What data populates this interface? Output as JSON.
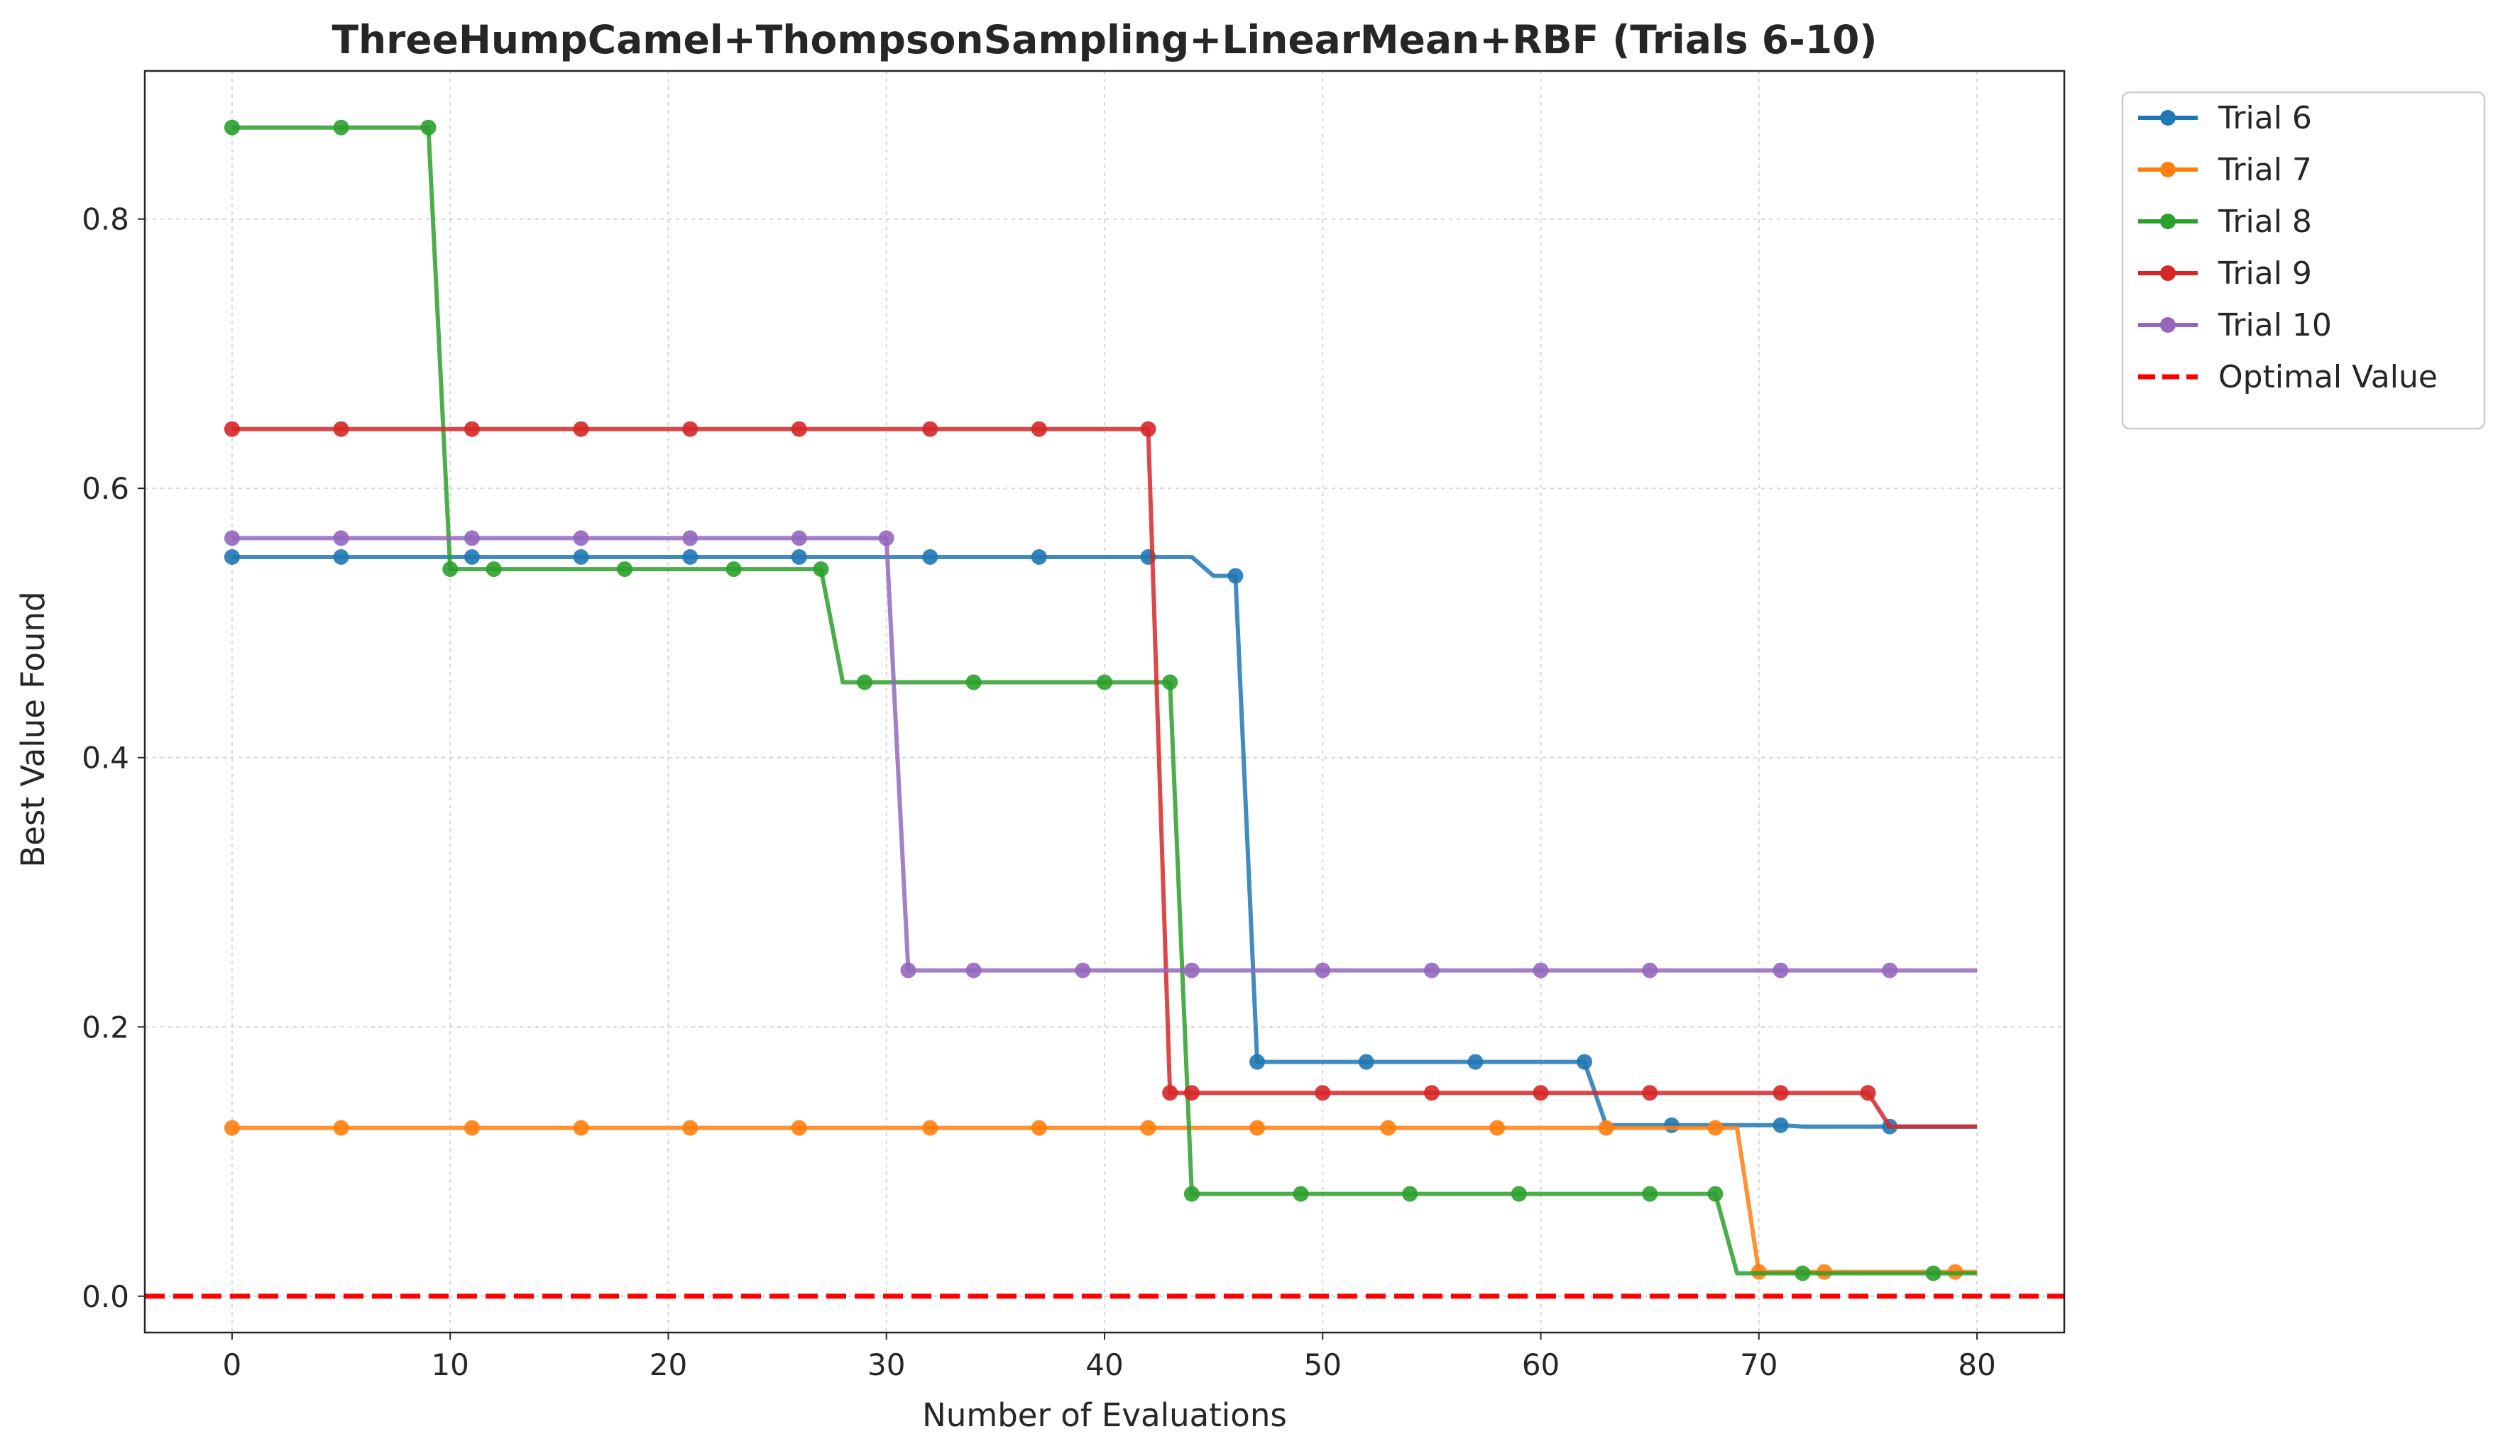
{
  "chart_data": {
    "type": "line",
    "title": "ThreeHumpCamel+ThompsonSampling+LinearMean+RBF (Trials 6-10)",
    "xlabel": "Number of Evaluations",
    "ylabel": "Best Value Found",
    "xlim": [
      -4,
      84
    ],
    "ylim": [
      -0.027,
      0.91
    ],
    "xticks": [
      0,
      10,
      20,
      30,
      40,
      50,
      60,
      70,
      80
    ],
    "yticks": [
      0.0,
      0.2,
      0.4,
      0.6,
      0.8
    ],
    "xtick_labels": [
      "0",
      "10",
      "20",
      "30",
      "40",
      "50",
      "60",
      "70",
      "80"
    ],
    "ytick_labels": [
      "0.0",
      "0.2",
      "0.4",
      "0.6",
      "0.8"
    ],
    "grid": true,
    "legend_position": "outside-top-right",
    "series": [
      {
        "name": "Trial 6",
        "color": "#1f77b4",
        "breakpoints": [
          [
            0,
            0.549
          ],
          [
            44,
            0.549
          ],
          [
            45,
            0.535
          ],
          [
            46,
            0.535
          ],
          [
            47,
            0.174
          ],
          [
            62,
            0.174
          ],
          [
            63,
            0.127
          ],
          [
            71,
            0.127
          ],
          [
            72,
            0.126
          ],
          [
            80,
            0.126
          ]
        ],
        "markers_x": [
          0,
          5,
          11,
          16,
          21,
          26,
          32,
          37,
          42,
          46,
          47,
          52,
          57,
          62,
          66,
          71,
          76
        ]
      },
      {
        "name": "Trial 7",
        "color": "#ff7f0e",
        "breakpoints": [
          [
            0,
            0.125
          ],
          [
            69,
            0.125
          ],
          [
            70,
            0.018
          ],
          [
            80,
            0.018
          ]
        ],
        "markers_x": [
          0,
          5,
          11,
          16,
          21,
          26,
          32,
          37,
          42,
          47,
          53,
          58,
          63,
          68,
          70,
          73,
          79
        ]
      },
      {
        "name": "Trial 8",
        "color": "#2ca02c",
        "breakpoints": [
          [
            0,
            0.868
          ],
          [
            9,
            0.868
          ],
          [
            10,
            0.54
          ],
          [
            27,
            0.54
          ],
          [
            28,
            0.456
          ],
          [
            43,
            0.456
          ],
          [
            44,
            0.076
          ],
          [
            68,
            0.076
          ],
          [
            69,
            0.017
          ],
          [
            80,
            0.017
          ]
        ],
        "markers_x": [
          0,
          5,
          9,
          10,
          12,
          18,
          23,
          27,
          29,
          34,
          40,
          43,
          44,
          49,
          54,
          59,
          65,
          68,
          72,
          78
        ]
      },
      {
        "name": "Trial 9",
        "color": "#d62728",
        "breakpoints": [
          [
            0,
            0.644
          ],
          [
            42,
            0.644
          ],
          [
            43,
            0.151
          ],
          [
            75,
            0.151
          ],
          [
            76,
            0.126
          ],
          [
            80,
            0.126
          ]
        ],
        "markers_x": [
          0,
          5,
          11,
          16,
          21,
          26,
          32,
          37,
          42,
          43,
          44,
          50,
          55,
          60,
          65,
          71,
          75
        ]
      },
      {
        "name": "Trial 10",
        "color": "#9467bd",
        "breakpoints": [
          [
            0,
            0.563
          ],
          [
            30,
            0.563
          ],
          [
            31,
            0.242
          ],
          [
            80,
            0.242
          ]
        ],
        "markers_x": [
          0,
          5,
          11,
          16,
          21,
          26,
          30,
          31,
          34,
          39,
          44,
          50,
          55,
          60,
          65,
          71,
          76
        ]
      }
    ],
    "reference_line": {
      "name": "Optimal Value",
      "y": 0.0,
      "color": "#ff0000",
      "style": "dashed"
    }
  }
}
